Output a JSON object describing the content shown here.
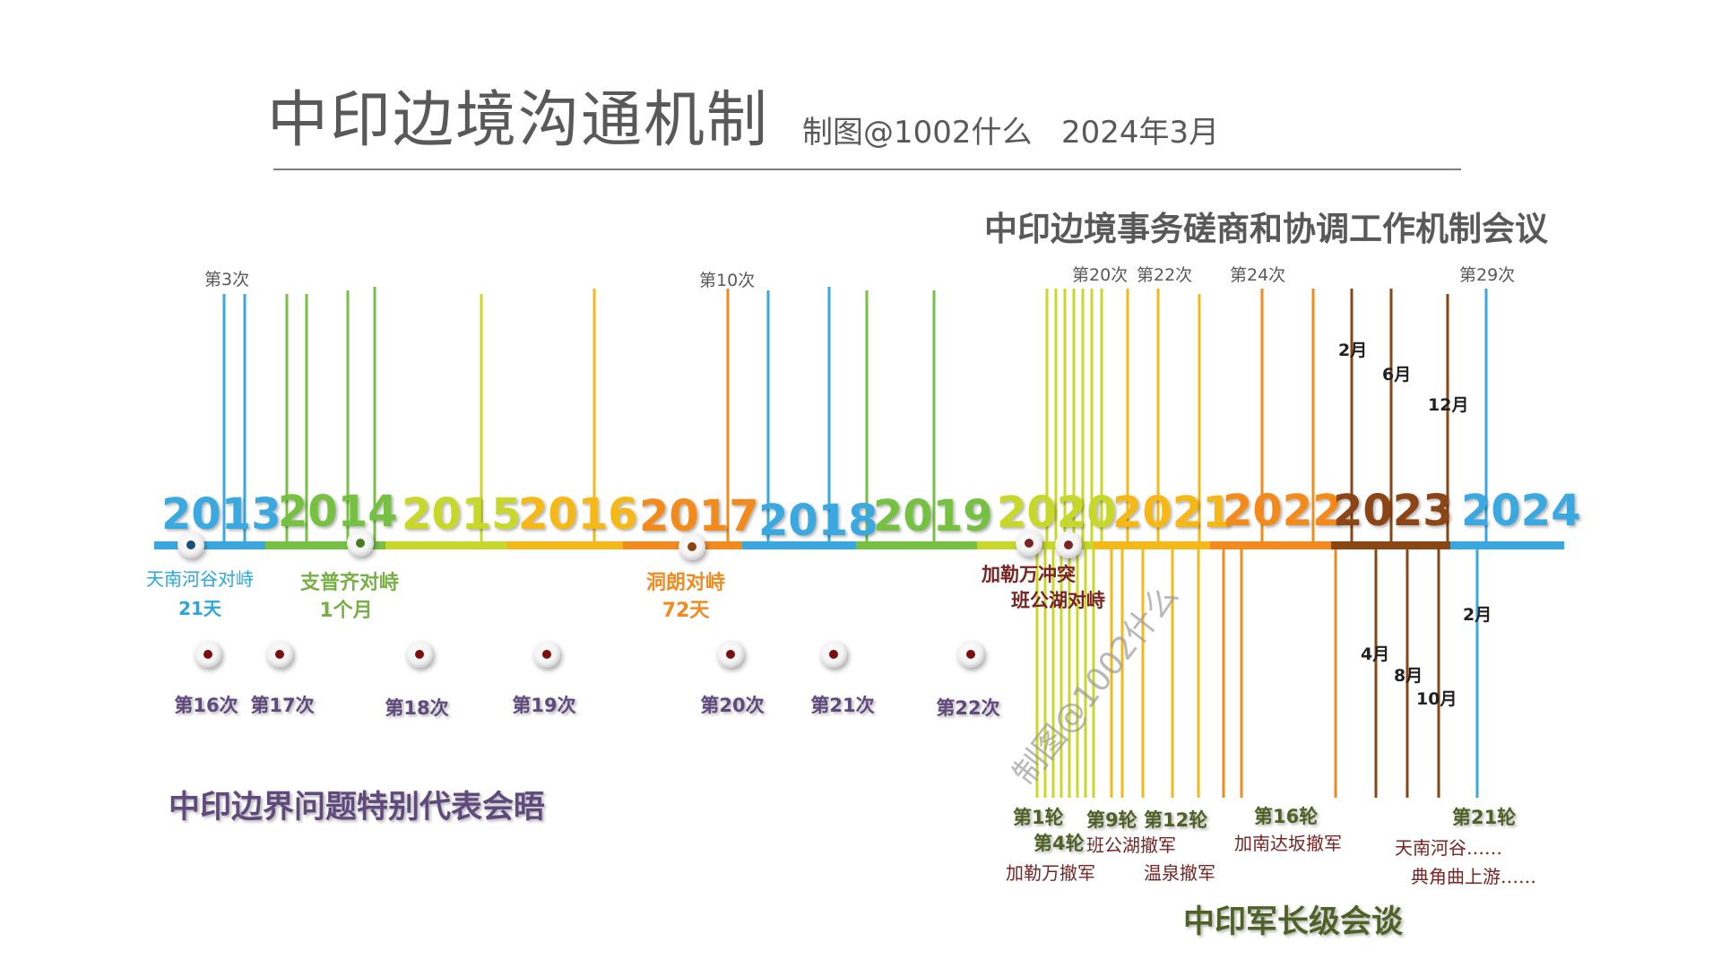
{
  "header": {
    "title": "中印边境沟通机制",
    "credit": "制图@1002什么   2024年3月"
  },
  "sections": {
    "wmcc": "中印边境事务磋商和协调工作机制会议",
    "sr": "中印边界问题特别代表会晤",
    "corps": "中印军长级会谈"
  },
  "watermark": "制图@1002什么",
  "colors": {
    "2013": "#3aa8e0",
    "2014": "#76c043",
    "2015": "#c8d82a",
    "2016": "#f5b819",
    "2017": "#f28a1e",
    "2018": "#3aa8e0",
    "2019": "#76c043",
    "2020": "#c8d82a",
    "2021": "#f5b819",
    "2022": "#f28a1e",
    "2023": "#8b4513",
    "2024": "#3aa8e0",
    "sr_text": "#604a7b",
    "corps_text": "#4f6228",
    "event_red": "#7b2323"
  },
  "years": [
    "2013",
    "2014",
    "2015",
    "2016",
    "2017",
    "2018",
    "2019",
    "2020",
    "2021",
    "2022",
    "2023",
    "2024"
  ],
  "wmcc_labels": [
    {
      "text": "第3次"
    },
    {
      "text": "第10次"
    },
    {
      "text": "第20次"
    },
    {
      "text": "第22次"
    },
    {
      "text": "第24次"
    },
    {
      "text": "第29次"
    }
  ],
  "month_labels_top": [
    {
      "text": "2月"
    },
    {
      "text": "6月"
    },
    {
      "text": "12月"
    }
  ],
  "month_labels_bottom": [
    {
      "text": "2月"
    },
    {
      "text": "4月"
    },
    {
      "text": "8月"
    },
    {
      "text": "10月"
    }
  ],
  "events": [
    {
      "text": "天南河谷对峙",
      "sub": "21天",
      "color": "#2aa6e0"
    },
    {
      "text": "支普齐对峙",
      "sub": "1个月",
      "color": "#76b043"
    },
    {
      "text": "洞朗对峙",
      "sub": "72天",
      "color": "#f28a1e"
    },
    {
      "text": "加勒万冲突",
      "sub": "",
      "color": "#7b2323"
    },
    {
      "text": "班公湖对峙",
      "sub": "",
      "color": "#7b2323"
    }
  ],
  "sr_meetings": [
    {
      "text": "第16次"
    },
    {
      "text": "第17次"
    },
    {
      "text": "第18次"
    },
    {
      "text": "第19次"
    },
    {
      "text": "第20次"
    },
    {
      "text": "第21次"
    },
    {
      "text": "第22次"
    }
  ],
  "corps_rounds": [
    {
      "text": "第1轮"
    },
    {
      "text": "第4轮"
    },
    {
      "text": "第9轮"
    },
    {
      "text": "第12轮"
    },
    {
      "text": "第16轮"
    },
    {
      "text": "第21轮"
    }
  ],
  "corps_outcomes": [
    {
      "text": "加勒万撤军"
    },
    {
      "text": "班公湖撤军"
    },
    {
      "text": "温泉撤军"
    },
    {
      "text": "加南达坂撤军"
    },
    {
      "text": "天南河谷……"
    },
    {
      "text": "典角曲上游……"
    }
  ]
}
